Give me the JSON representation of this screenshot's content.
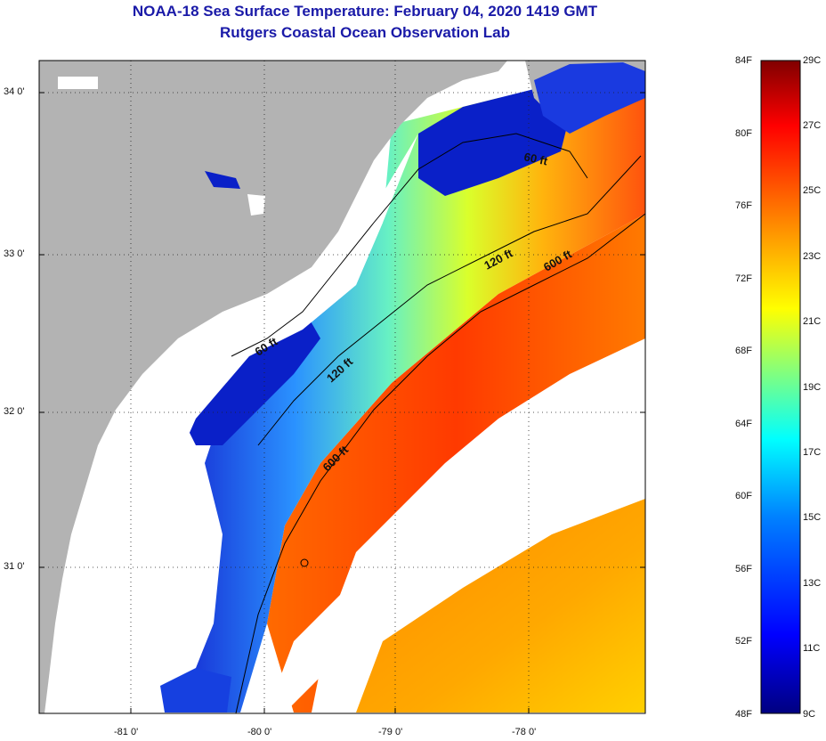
{
  "title": {
    "line1": "NOAA-18 Sea Surface Temperature:  February 04, 2020 1419 GMT",
    "line2": "Rutgers Coastal Ocean Observation Lab"
  },
  "map": {
    "lon_labels": [
      "-81 0'",
      "-80 0'",
      "-79 0'",
      "-78 0'"
    ],
    "lat_labels": [
      "34 0'",
      "33 0'",
      "32 0'",
      "31 0'"
    ],
    "contours": [
      {
        "label": "60 ft",
        "depth_ft": 60
      },
      {
        "label": "120 ft",
        "depth_ft": 120
      },
      {
        "label": "600 ft",
        "depth_ft": 600
      }
    ],
    "contour_labels": [
      "60 ft",
      "60 ft",
      "120 ft",
      "120 ft",
      "600 ft",
      "600 ft"
    ],
    "colors": {
      "land": "#b3b3b3",
      "cloud": "#ffffff",
      "contour": "#000000",
      "cold": "#0a20c8",
      "warm": "#ff3a00"
    }
  },
  "colorbar": {
    "fahrenheit_labels": [
      "84F",
      "80F",
      "76F",
      "72F",
      "68F",
      "64F",
      "60F",
      "56F",
      "52F",
      "48F"
    ],
    "celsius_labels": [
      "29C",
      "27C",
      "25C",
      "23C",
      "21C",
      "19C",
      "17C",
      "15C",
      "13C",
      "11C",
      "9C"
    ],
    "range_f": [
      48,
      84
    ],
    "range_c": [
      9,
      29
    ],
    "gradient_stops": [
      "#000080",
      "#0000ff",
      "#0080ff",
      "#00ffff",
      "#80ff80",
      "#ffff00",
      "#ff8000",
      "#ff0000",
      "#800000"
    ]
  }
}
